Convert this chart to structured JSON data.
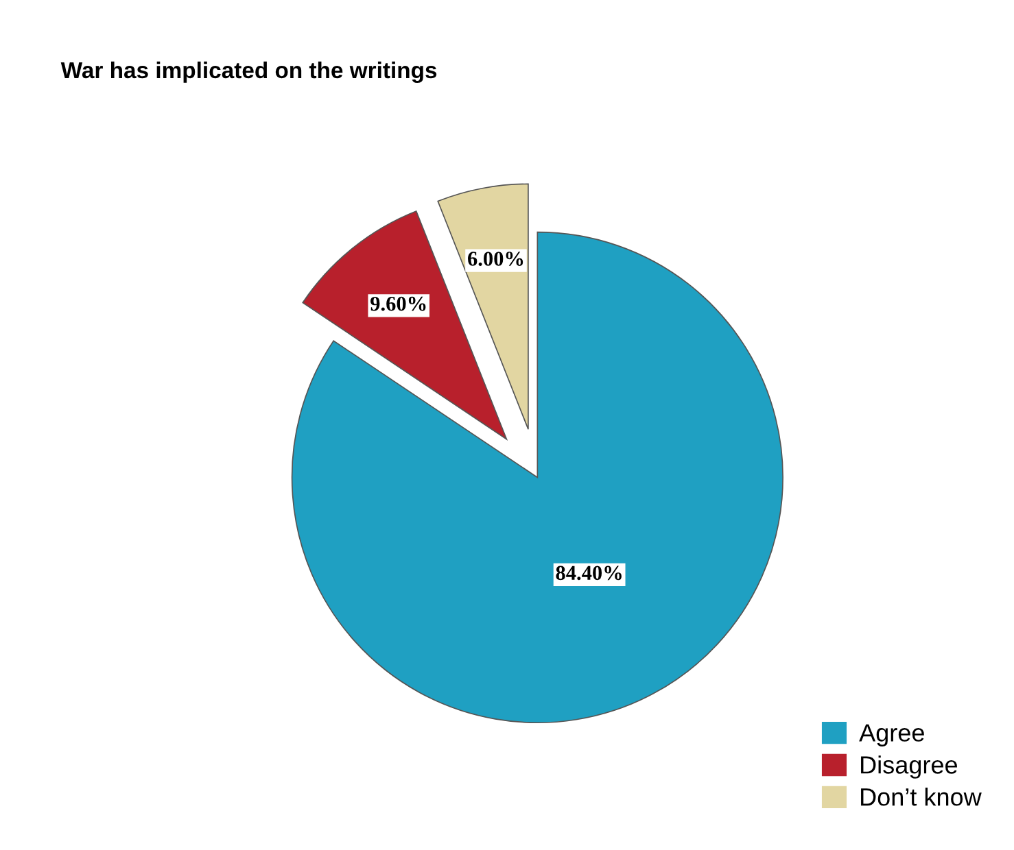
{
  "chart_data": {
    "type": "pie",
    "title": "War has implicated on the writings",
    "categories": [
      "Agree",
      "Disagree",
      "Don’t know"
    ],
    "values": [
      84.4,
      9.6,
      6.0
    ],
    "value_labels": [
      "84.40%",
      "9.60%",
      "6.00%"
    ],
    "colors": [
      "#1fa0c2",
      "#b8202c",
      "#e2d6a2"
    ],
    "legend": "bottom right"
  }
}
